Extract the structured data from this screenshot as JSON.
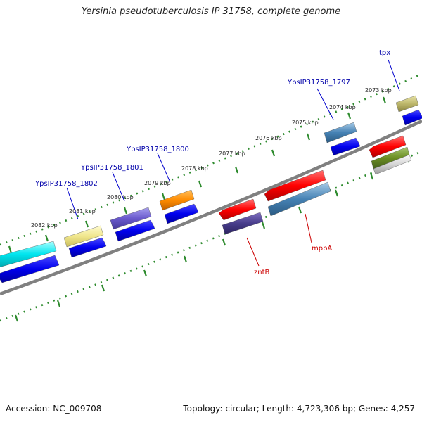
{
  "title": "Yersinia pseudotuberculosis IP 31758, complete genome",
  "footer": {
    "accession": "Accession: NC_009708",
    "stats": "Topology: circular; Length: 4,723,306 bp; Genes: 4,257"
  },
  "kbp_ticks": [
    "2073 kbp",
    "2074 kbp",
    "2075 kbp",
    "2076 kbp",
    "2077 kbp",
    "2078 kbp",
    "2079 kbp",
    "2080 kbp",
    "2081 kbp",
    "2082 kbp"
  ],
  "gene_labels": {
    "tpx": "tpx",
    "ypsip_1797": "YpsIP31758_1797",
    "ypsip_1800": "YpsIP31758_1800",
    "ypsip_1801": "YpsIP31758_1801",
    "ypsip_1802": "YpsIP31758_1802",
    "mppA": "mppA",
    "zntB": "zntB"
  },
  "colors": {
    "backbone": "#808080",
    "ruler_tick": "#2e8b2e",
    "label_forward": "#0000aa",
    "label_reverse": "#cc0000",
    "cds_blue": "#0000ee"
  }
}
